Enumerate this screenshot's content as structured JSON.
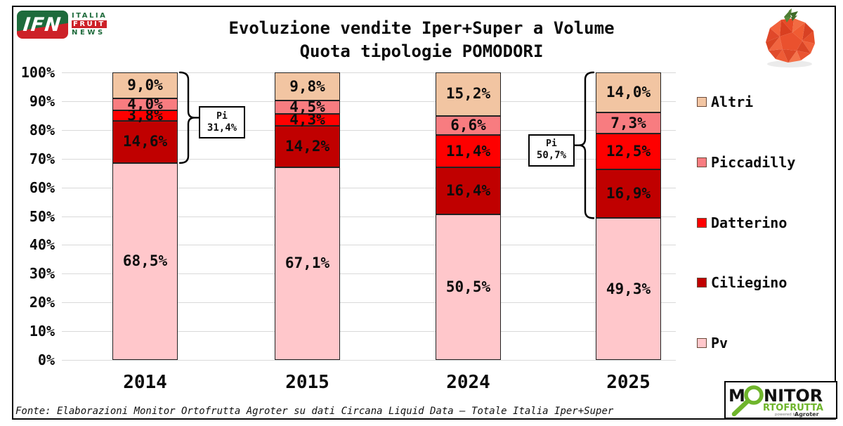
{
  "title": {
    "line1": "Evoluzione vendite Iper+Super a Volume",
    "line2": "Quota tipologie POMODORI"
  },
  "header_logo": {
    "acronym": "IFN",
    "word1": "ITALIA",
    "word2": "FRUIT",
    "word3": "NEWS"
  },
  "footer": {
    "source": "Fonte: Elaborazioni Monitor Ortofrutta Agroter su dati Circana Liquid Data – Totale Italia Iper+Super"
  },
  "monitor_logo": {
    "part1": "M",
    "part2": "NITOR",
    "part3": "RTOFRUTTA",
    "powered_by": "powered by",
    "brand": "Agroter"
  },
  "chart_data": {
    "type": "bar",
    "stacked": true,
    "title": "Evoluzione vendite Iper+Super a Volume — Quota tipologie POMODORI",
    "categories": [
      "2014",
      "2015",
      "2024",
      "2025"
    ],
    "series": [
      {
        "name": "Pv",
        "color": "#FFC7CB",
        "values": [
          68.5,
          67.1,
          50.5,
          49.3
        ],
        "labels": [
          "68,5%",
          "67,1%",
          "50,5%",
          "49,3%"
        ]
      },
      {
        "name": "Ciliegino",
        "color": "#C00000",
        "values": [
          14.6,
          14.2,
          16.4,
          16.9
        ],
        "labels": [
          "14,6%",
          "14,2%",
          "16,4%",
          "16,9%"
        ]
      },
      {
        "name": "Datterino",
        "color": "#FE0000",
        "values": [
          3.8,
          4.3,
          11.4,
          12.5
        ],
        "labels": [
          "3,8%",
          "4,3%",
          "11,4%",
          "12,5%"
        ]
      },
      {
        "name": "Piccadilly",
        "color": "#F87C80",
        "values": [
          4.0,
          4.5,
          6.6,
          7.3
        ],
        "labels": [
          "4,0%",
          "4,5%",
          "6,6%",
          "7,3%"
        ]
      },
      {
        "name": "Altri",
        "color": "#F2C5A2",
        "values": [
          9.0,
          9.8,
          15.2,
          14.0
        ],
        "labels": [
          "9,0%",
          "9,8%",
          "15,2%",
          "14,0%"
        ]
      }
    ],
    "y_ticks": [
      "100%",
      "90%",
      "80%",
      "70%",
      "60%",
      "50%",
      "40%",
      "30%",
      "20%",
      "10%",
      "0%"
    ],
    "ylim": [
      0,
      100
    ],
    "grid": true,
    "legend": [
      "Altri",
      "Piccadilly",
      "Datterino",
      "Ciliegino",
      "Pv"
    ],
    "legend_position": "right",
    "annotations": [
      {
        "line1": "Pi",
        "line2": "31,4%",
        "category": "2014",
        "side": "right",
        "span_pct": [
          68.5,
          100
        ]
      },
      {
        "line1": "Pi",
        "line2": "50,7%",
        "category": "2025",
        "side": "left",
        "span_pct": [
          49.3,
          100
        ]
      }
    ]
  }
}
